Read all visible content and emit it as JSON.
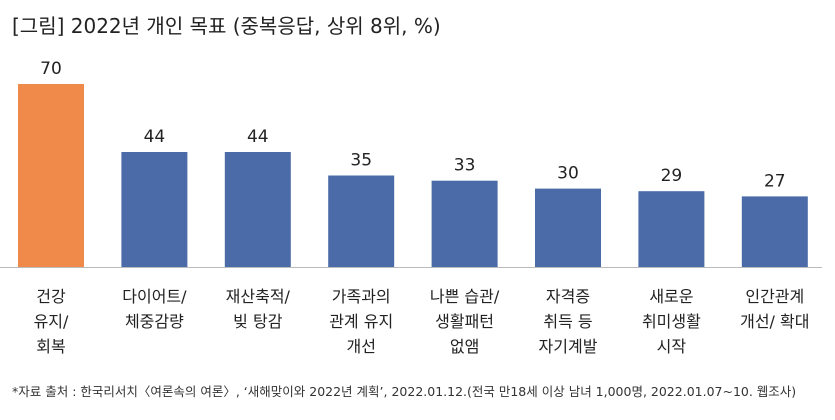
{
  "title": "[그림] 2022년 개인 목표 (중복응답, 상위 8위, %)",
  "footnote": "*자료 출처 : 한국리서치〈여론속의 여론〉, ‘새해맞이와 2022년 계획’, 2022.01.12.(전국 만18세 이상 남녀 1,000명, 2022.01.07~10. 웹조사)",
  "colors": {
    "highlight": "#F08A4B",
    "bar": "#4A6BA8",
    "axis": "#BBBBBB"
  },
  "chart_data": {
    "type": "bar",
    "title": "[그림] 2022년 개인 목표 (중복응답, 상위 8위, %)",
    "xlabel": "",
    "ylabel": "",
    "ylim": [
      0,
      70
    ],
    "grid": false,
    "legend": "none",
    "categories": [
      [
        "건강",
        "유지/",
        "회복"
      ],
      [
        "다이어트/",
        "체중감량"
      ],
      [
        "재산축적/",
        "빚 탕감"
      ],
      [
        "가족과의",
        "관계 유지",
        "개선"
      ],
      [
        "나쁜 습관/",
        "생활패턴",
        "없앰"
      ],
      [
        "자격증",
        "취득 등",
        "자기계발"
      ],
      [
        "새로운",
        "취미생활",
        "시작"
      ],
      [
        "인간관계",
        "개선/ 확대"
      ]
    ],
    "values": [
      70,
      44,
      44,
      35,
      33,
      30,
      29,
      27
    ],
    "highlight_index": 0
  }
}
